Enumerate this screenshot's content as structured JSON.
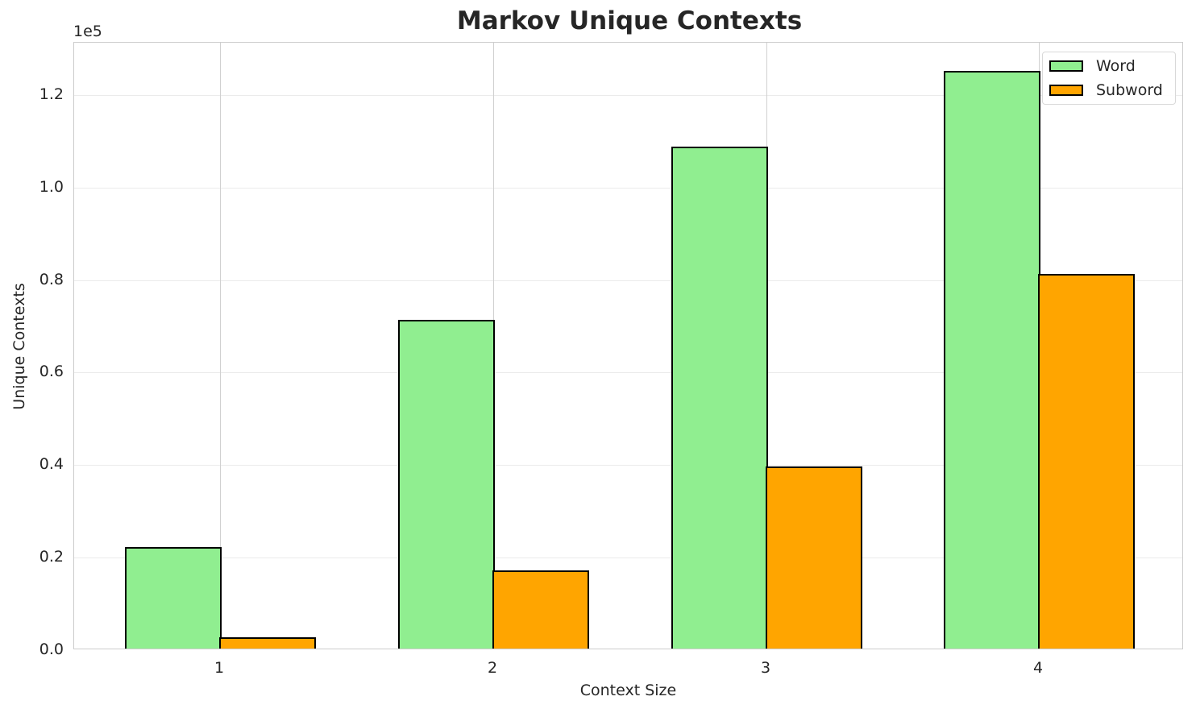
{
  "chart_data": {
    "type": "bar",
    "title": "Markov Unique Contexts",
    "xlabel": "Context Size",
    "ylabel": "Unique Contexts",
    "y_offset_label": "1e5",
    "categories": [
      "1",
      "2",
      "3",
      "4"
    ],
    "series": [
      {
        "name": "Word",
        "color": "#90ee90",
        "values": [
          22000,
          71100,
          108500,
          124900
        ]
      },
      {
        "name": "Subword",
        "color": "#ffa500",
        "values": [
          2400,
          16900,
          39400,
          81000
        ]
      }
    ],
    "ylim": [
      0,
      131300
    ],
    "yticks": [
      {
        "value": 0,
        "label": "0.0"
      },
      {
        "value": 20000,
        "label": "0.2"
      },
      {
        "value": 40000,
        "label": "0.4"
      },
      {
        "value": 60000,
        "label": "0.6"
      },
      {
        "value": 80000,
        "label": "0.8"
      },
      {
        "value": 100000,
        "label": "1.0"
      },
      {
        "value": 120000,
        "label": "1.2"
      }
    ],
    "grid": true,
    "legend_position": "upper right"
  }
}
